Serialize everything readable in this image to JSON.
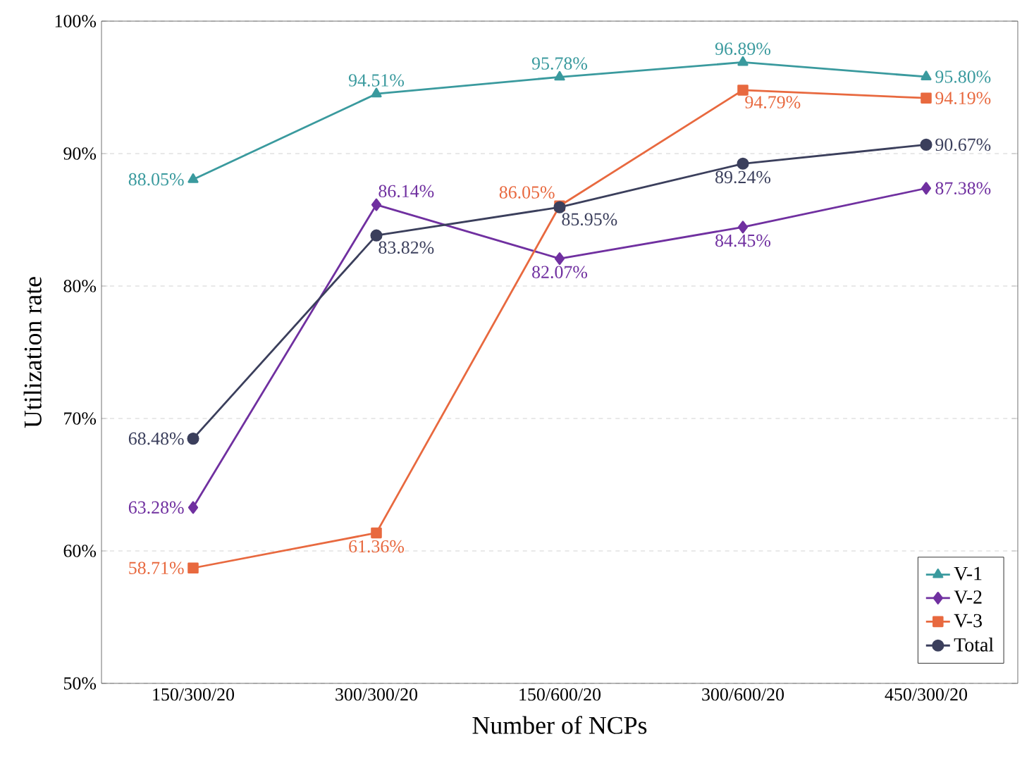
{
  "chart_data": {
    "type": "line",
    "xlabel": "Number of NCPs",
    "ylabel": "Utilization rate",
    "categories": [
      "150/300/20",
      "300/300/20",
      "150/600/20",
      "300/600/20",
      "450/300/20"
    ],
    "ylim": [
      50,
      100
    ],
    "yticks": [
      {
        "value": 50,
        "label": "50%"
      },
      {
        "value": 60,
        "label": "60%"
      },
      {
        "value": 70,
        "label": "70%"
      },
      {
        "value": 80,
        "label": "80%"
      },
      {
        "value": 90,
        "label": "90%"
      },
      {
        "value": 100,
        "label": "100%"
      }
    ],
    "grid": "y",
    "legend": "bottom right",
    "series": [
      {
        "name": "V-1",
        "color": "#3a9a9e",
        "marker": "triangle",
        "values": [
          88.05,
          94.51,
          95.78,
          96.89,
          95.8
        ],
        "value_labels": [
          "88.05%",
          "94.51%",
          "95.78%",
          "96.89%",
          "95.80%"
        ]
      },
      {
        "name": "V-2",
        "color": "#7030a0",
        "marker": "diamond",
        "values": [
          63.28,
          86.14,
          82.07,
          84.45,
          87.38
        ],
        "value_labels": [
          "63.28%",
          "86.14%",
          "82.07%",
          "84.45%",
          "87.38%"
        ]
      },
      {
        "name": "V-3",
        "color": "#e8693f",
        "marker": "square",
        "values": [
          58.71,
          61.36,
          86.05,
          94.79,
          94.19
        ],
        "value_labels": [
          "58.71%",
          "61.36%",
          "86.05%",
          "94.79%",
          "94.19%"
        ]
      },
      {
        "name": "Total",
        "color": "#3b3f5c",
        "marker": "circle",
        "values": [
          68.48,
          83.82,
          85.95,
          89.24,
          90.67
        ],
        "value_labels": [
          "68.48%",
          "83.82%",
          "85.95%",
          "89.24%",
          "90.67%"
        ]
      }
    ]
  }
}
